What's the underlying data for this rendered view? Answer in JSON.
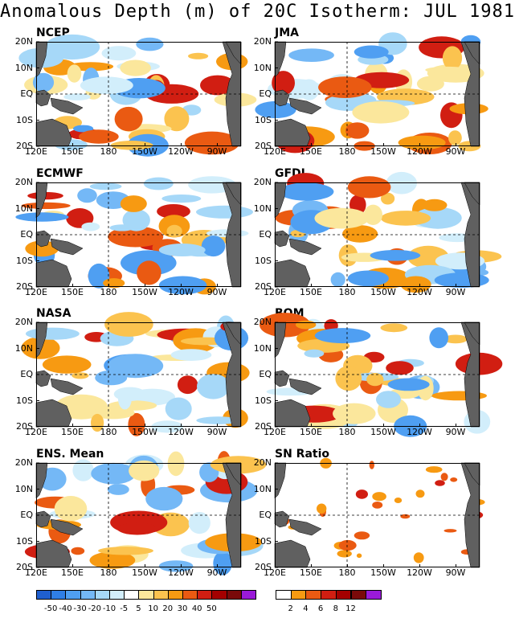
{
  "title": "Anomalous Depth (m) of 20C Isotherm: JUL 1981",
  "axes": {
    "lat_labels": [
      "20N",
      "10N",
      "EQ",
      "10S",
      "20S"
    ],
    "lon_labels": [
      "120E",
      "150E",
      "180",
      "150W",
      "120W",
      "90W"
    ]
  },
  "panels": [
    {
      "name": "NCEP"
    },
    {
      "name": "JMA"
    },
    {
      "name": "ECMWF"
    },
    {
      "name": "GFDL"
    },
    {
      "name": "NASA"
    },
    {
      "name": "BOM"
    },
    {
      "name": "ENS. Mean"
    },
    {
      "name": "SN Ratio"
    }
  ],
  "colorbar_depth": {
    "labels": [
      "-50",
      "-40",
      "-30",
      "-20",
      "-10",
      "-5",
      "5",
      "10",
      "20",
      "30",
      "40",
      "50"
    ],
    "colors": [
      "#1f5fcf",
      "#2f7fe6",
      "#4f9ff2",
      "#74b8f6",
      "#a6d8f8",
      "#d2eefb",
      "#ffffff",
      "#fbe79c",
      "#fbc34f",
      "#f79a12",
      "#ea5a12",
      "#d11e12",
      "#a40000",
      "#7a0a0a",
      "#9a1ad8"
    ]
  },
  "colorbar_sn": {
    "labels": [
      "2",
      "4",
      "6",
      "8",
      "12"
    ],
    "colors": [
      "#ffffff",
      "#f79a12",
      "#ea5a12",
      "#d11e12",
      "#a40000",
      "#7a0a0a",
      "#9a1ad8"
    ]
  },
  "colors": {
    "land": "#606060",
    "background": "#ffffff"
  }
}
